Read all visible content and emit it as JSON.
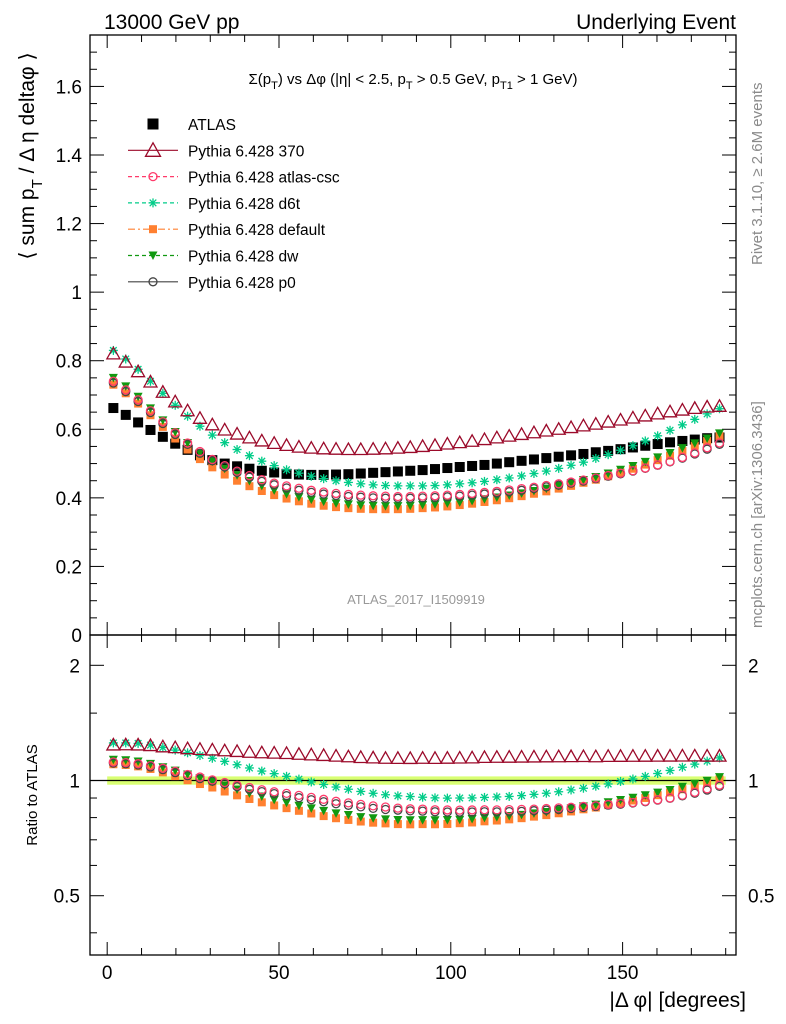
{
  "header": {
    "left": "13000 GeV pp",
    "right": "Underlying Event"
  },
  "side_labels": {
    "rivet": "Rivet 3.1.10, ≥ 2.6M events",
    "mcplots": "mcplots.cern.ch [arXiv:1306.3436]"
  },
  "analysis_id": "ATLAS_2017_I1509919",
  "colors": {
    "atlas": "#000000",
    "p370": "#9b0a2a",
    "atlas_csc": "#ff3a6a",
    "d6t": "#00cc88",
    "default": "#ff8030",
    "dw": "#119911",
    "p0": "#444444",
    "band": "#ccff44"
  },
  "chart_data": [
    {
      "type": "scatter",
      "title": "Σ(p_T) vs Δφ (|η| < 2.5, p_T > 0.5 GeV, p_T1 > 1 GeV)",
      "title_parts": {
        "a": "Σ(p",
        "a_sub": "T",
        "b": ") vs Δφ (|η| < 2.5, p",
        "b_sub": "T",
        "c": " > 0.5 GeV, p",
        "c_sub": "T1",
        "d": " > 1 GeV)"
      },
      "ylabel": "⟨ sum p_T / Δ η deltaφ ⟩",
      "ylabel_parts": {
        "a": "⟨ sum p",
        "a_sub": "T",
        "b": " / Δ η deltaφ ⟩"
      },
      "xlabel": "",
      "xlim": [
        -5,
        183
      ],
      "ylim": [
        0,
        1.75
      ],
      "y_ticks": [
        "0",
        "0.2",
        "0.4",
        "0.6",
        "0.8",
        "1",
        "1.2",
        "1.4",
        "1.6"
      ],
      "legend_position": "top-left",
      "legend": [
        {
          "key": "atlas",
          "label": "ATLAS"
        },
        {
          "key": "p370",
          "label": "Pythia 6.428 370"
        },
        {
          "key": "atlas_csc",
          "label": "Pythia 6.428 atlas-csc"
        },
        {
          "key": "d6t",
          "label": "Pythia 6.428 d6t"
        },
        {
          "key": "default",
          "label": "Pythia 6.428 default"
        },
        {
          "key": "dw",
          "label": "Pythia 6.428 dw"
        },
        {
          "key": "p0",
          "label": "Pythia 6.428 p0"
        }
      ],
      "x": [
        1.8,
        5.4,
        9.0,
        12.6,
        16.2,
        19.8,
        23.4,
        27.0,
        30.6,
        34.2,
        37.8,
        41.4,
        45.0,
        48.6,
        52.2,
        55.8,
        59.4,
        63.0,
        66.6,
        70.2,
        73.8,
        77.4,
        81.0,
        84.6,
        88.2,
        91.8,
        95.4,
        99.0,
        102.6,
        106.2,
        109.8,
        113.4,
        117.0,
        120.6,
        124.2,
        127.8,
        131.4,
        135.0,
        138.6,
        142.2,
        145.8,
        149.4,
        153.0,
        156.6,
        160.2,
        163.8,
        167.4,
        171.0,
        174.6,
        178.2
      ],
      "series": [
        {
          "key": "atlas",
          "name": "ATLAS",
          "values": [
            0.662,
            0.642,
            0.62,
            0.598,
            0.578,
            0.558,
            0.54,
            0.524,
            0.51,
            0.5,
            0.492,
            0.485,
            0.479,
            0.474,
            0.47,
            0.468,
            0.467,
            0.467,
            0.468,
            0.469,
            0.471,
            0.473,
            0.475,
            0.477,
            0.479,
            0.481,
            0.484,
            0.487,
            0.49,
            0.493,
            0.496,
            0.5,
            0.504,
            0.508,
            0.512,
            0.516,
            0.52,
            0.524,
            0.528,
            0.533,
            0.537,
            0.542,
            0.547,
            0.552,
            0.557,
            0.562,
            0.566,
            0.57,
            0.574,
            0.576
          ]
        },
        {
          "key": "p370",
          "name": "Pythia 6.428 370",
          "values": [
            0.82,
            0.796,
            0.768,
            0.738,
            0.708,
            0.68,
            0.654,
            0.632,
            0.613,
            0.598,
            0.586,
            0.575,
            0.566,
            0.559,
            0.553,
            0.548,
            0.545,
            0.543,
            0.542,
            0.541,
            0.541,
            0.542,
            0.543,
            0.545,
            0.547,
            0.55,
            0.553,
            0.557,
            0.561,
            0.565,
            0.57,
            0.575,
            0.58,
            0.585,
            0.59,
            0.595,
            0.6,
            0.605,
            0.61,
            0.615,
            0.621,
            0.627,
            0.633,
            0.639,
            0.645,
            0.651,
            0.656,
            0.661,
            0.665,
            0.667
          ]
        },
        {
          "key": "atlas_csc",
          "name": "Pythia 6.428 atlas-csc",
          "values": [
            0.74,
            0.715,
            0.686,
            0.654,
            0.622,
            0.59,
            0.56,
            0.535,
            0.512,
            0.494,
            0.478,
            0.465,
            0.453,
            0.443,
            0.435,
            0.428,
            0.422,
            0.417,
            0.413,
            0.41,
            0.408,
            0.406,
            0.405,
            0.404,
            0.404,
            0.405,
            0.406,
            0.408,
            0.41,
            0.413,
            0.416,
            0.419,
            0.423,
            0.427,
            0.431,
            0.436,
            0.441,
            0.446,
            0.452,
            0.458,
            0.465,
            0.472,
            0.479,
            0.487,
            0.496,
            0.506,
            0.518,
            0.531,
            0.546,
            0.56
          ]
        },
        {
          "key": "d6t",
          "name": "Pythia 6.428 d6t",
          "values": [
            0.83,
            0.805,
            0.775,
            0.74,
            0.705,
            0.67,
            0.638,
            0.609,
            0.583,
            0.561,
            0.541,
            0.523,
            0.507,
            0.494,
            0.482,
            0.472,
            0.463,
            0.456,
            0.45,
            0.445,
            0.441,
            0.438,
            0.436,
            0.435,
            0.435,
            0.435,
            0.436,
            0.438,
            0.441,
            0.444,
            0.448,
            0.453,
            0.458,
            0.464,
            0.471,
            0.478,
            0.486,
            0.495,
            0.504,
            0.515,
            0.526,
            0.539,
            0.552,
            0.566,
            0.581,
            0.597,
            0.613,
            0.629,
            0.645,
            0.66
          ]
        },
        {
          "key": "default",
          "name": "Pythia 6.428 default",
          "values": [
            0.73,
            0.705,
            0.675,
            0.641,
            0.607,
            0.573,
            0.541,
            0.513,
            0.489,
            0.468,
            0.45,
            0.434,
            0.42,
            0.408,
            0.398,
            0.39,
            0.383,
            0.377,
            0.373,
            0.37,
            0.368,
            0.367,
            0.367,
            0.367,
            0.368,
            0.37,
            0.372,
            0.375,
            0.379,
            0.383,
            0.388,
            0.393,
            0.399,
            0.405,
            0.412,
            0.419,
            0.427,
            0.435,
            0.444,
            0.453,
            0.463,
            0.474,
            0.485,
            0.497,
            0.51,
            0.523,
            0.537,
            0.552,
            0.566,
            0.58
          ]
        },
        {
          "key": "dw",
          "name": "Pythia 6.428 dw",
          "values": [
            0.75,
            0.725,
            0.695,
            0.661,
            0.626,
            0.592,
            0.56,
            0.531,
            0.506,
            0.485,
            0.466,
            0.449,
            0.435,
            0.422,
            0.411,
            0.402,
            0.395,
            0.389,
            0.384,
            0.381,
            0.378,
            0.377,
            0.376,
            0.376,
            0.377,
            0.379,
            0.381,
            0.384,
            0.387,
            0.391,
            0.396,
            0.401,
            0.407,
            0.413,
            0.42,
            0.427,
            0.435,
            0.443,
            0.452,
            0.461,
            0.471,
            0.482,
            0.493,
            0.505,
            0.518,
            0.531,
            0.545,
            0.559,
            0.573,
            0.588
          ]
        },
        {
          "key": "p0",
          "name": "Pythia 6.428 p0",
          "values": [
            0.735,
            0.71,
            0.681,
            0.649,
            0.617,
            0.585,
            0.556,
            0.53,
            0.508,
            0.49,
            0.474,
            0.46,
            0.448,
            0.438,
            0.429,
            0.422,
            0.416,
            0.411,
            0.407,
            0.404,
            0.402,
            0.4,
            0.399,
            0.399,
            0.399,
            0.4,
            0.401,
            0.403,
            0.405,
            0.408,
            0.411,
            0.414,
            0.418,
            0.422,
            0.427,
            0.432,
            0.437,
            0.443,
            0.449,
            0.456,
            0.463,
            0.47,
            0.478,
            0.486,
            0.495,
            0.505,
            0.516,
            0.528,
            0.542,
            0.556
          ]
        }
      ]
    },
    {
      "type": "scatter",
      "xlabel": "|Δ φ| [degrees]",
      "ylabel": "Ratio to ATLAS",
      "xlim": [
        -5,
        183
      ],
      "x_ticks": [
        "0",
        "50",
        "100",
        "150"
      ],
      "ylim_log": [
        0.35,
        2.4
      ],
      "y_ticks": [
        "0.5",
        "1",
        "2"
      ],
      "band": [
        0.975,
        1.025
      ]
    }
  ]
}
